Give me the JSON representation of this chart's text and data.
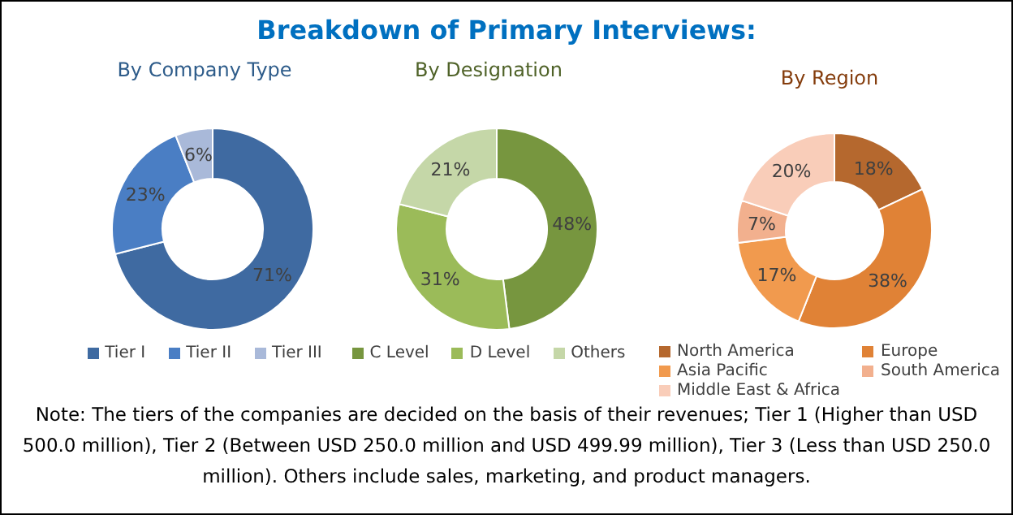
{
  "chart_data": [
    {
      "type": "donut",
      "title": "Breakdown of Primary Interviews:",
      "subtitle": "By Company Type",
      "categories": [
        "Tier I",
        "Tier II",
        "Tier III"
      ],
      "values": [
        71,
        23,
        6
      ],
      "value_labels": [
        "71%",
        "23%",
        "6%"
      ],
      "colors": [
        "#3f6aa1",
        "#4a7ec4",
        "#a9b9d9"
      ],
      "legend": "bottom"
    },
    {
      "type": "donut",
      "subtitle": "By Designation",
      "categories": [
        "C Level",
        "D Level",
        "Others"
      ],
      "values": [
        48,
        31,
        21
      ],
      "value_labels": [
        "48%",
        "31%",
        "21%"
      ],
      "colors": [
        "#77963f",
        "#9bbb59",
        "#c5d7a8"
      ],
      "legend": "bottom"
    },
    {
      "type": "donut",
      "subtitle": "By Region",
      "categories": [
        "North America",
        "Europe",
        "Asia Pacific",
        "South America",
        "Middle East & Africa"
      ],
      "values": [
        18,
        38,
        17,
        7,
        20
      ],
      "value_labels": [
        "18%",
        "38%",
        "17%",
        "7%",
        "20%"
      ],
      "colors": [
        "#b5682e",
        "#e08236",
        "#f19a4e",
        "#f2b08e",
        "#f9cdb9"
      ],
      "legend": "bottom",
      "annotations": [
        "Note: The tiers of the companies are decided on the basis of their revenues; Tier 1 (Higher than USD 500.0 million), Tier 2 (Between USD 250.0 million and USD 499.99 million), Tier 3 (Less than USD 250.0 million). Others include sales, marketing, and product managers."
      ]
    }
  ]
}
